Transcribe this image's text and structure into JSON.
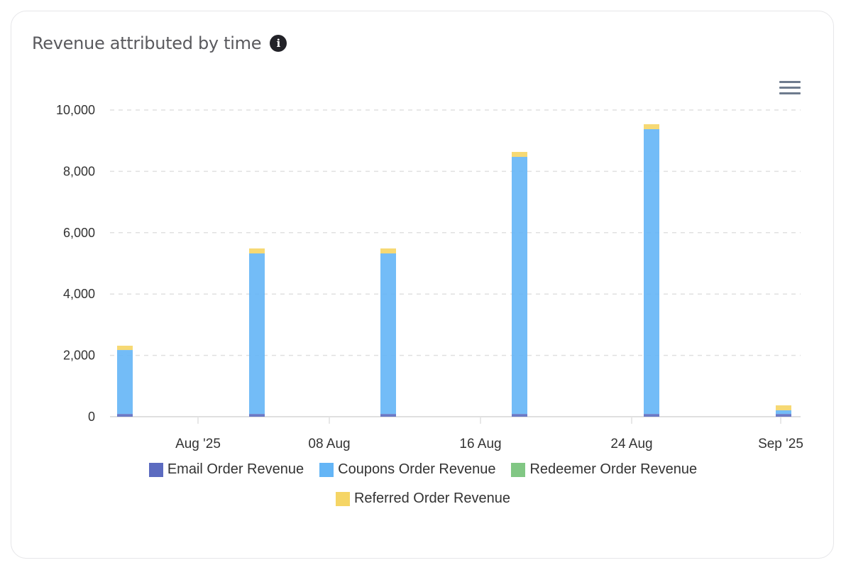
{
  "card": {
    "title": "Revenue attributed by time",
    "info_icon": "info-icon",
    "menu_icon": "hamburger-menu-icon"
  },
  "chart_data": {
    "type": "bar",
    "stacked": true,
    "title": "Revenue attributed by time",
    "xlabel": "",
    "ylabel": "",
    "ylim": [
      0,
      10000
    ],
    "y_ticks": [
      "0",
      "2,000",
      "4,000",
      "6,000",
      "8,000",
      "10,000"
    ],
    "x_tick_labels": [
      "Aug '25",
      "08 Aug",
      "16 Aug",
      "24 Aug",
      "Sep '25"
    ],
    "categories": [
      "~29 Jul",
      "~04 Aug",
      "~11 Aug",
      "~18 Aug",
      "~25 Aug",
      "~01 Sep"
    ],
    "series": [
      {
        "name": "Email Order Revenue",
        "color": "#5c6bc0",
        "values": [
          90,
          90,
          90,
          90,
          90,
          90
        ]
      },
      {
        "name": "Coupons Order Revenue",
        "color": "#64b5f6",
        "values": [
          2085,
          5234,
          5234,
          8382,
          9285,
          118
        ]
      },
      {
        "name": "Redeemer Order Revenue",
        "color": "#81c784",
        "values": [
          0,
          0,
          0,
          0,
          0,
          0
        ]
      },
      {
        "name": "Referred Order Revenue",
        "color": "#f5d565",
        "values": [
          140,
          162,
          162,
          162,
          162,
          162
        ]
      }
    ],
    "grid": true,
    "legend_position": "bottom"
  },
  "legend": {
    "items": [
      {
        "label": "Email Order Revenue",
        "color": "#5c6bc0"
      },
      {
        "label": "Coupons Order Revenue",
        "color": "#64b5f6"
      },
      {
        "label": "Redeemer Order Revenue",
        "color": "#81c784"
      },
      {
        "label": "Referred Order Revenue",
        "color": "#f5d565"
      }
    ]
  }
}
